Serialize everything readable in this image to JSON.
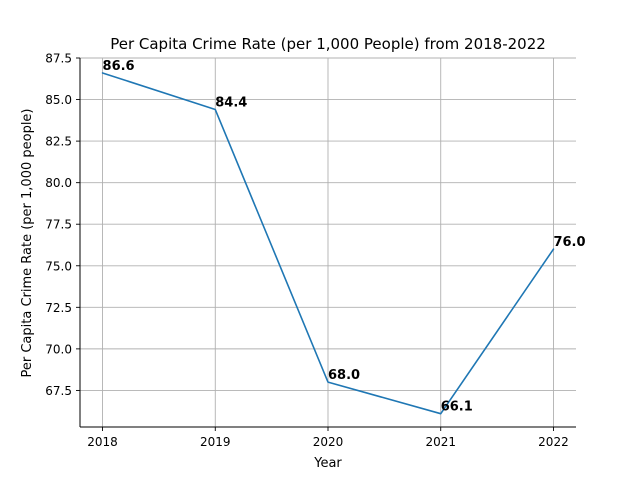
{
  "chart_data": {
    "type": "line",
    "title": "Per Capita Crime Rate (per 1,000 People) from 2018-2022",
    "xlabel": "Year",
    "ylabel": "Per Capita Crime Rate (per 1,000 people)",
    "x": [
      2018,
      2019,
      2020,
      2021,
      2022
    ],
    "x_tick_labels": [
      "2018",
      "2019",
      "2020",
      "2021",
      "2022"
    ],
    "series": [
      {
        "values": [
          86.6,
          84.4,
          68.0,
          66.1,
          76.0
        ],
        "data_labels": [
          "86.6",
          "84.4",
          "68.0",
          "66.1",
          "76.0"
        ],
        "color": "#1f77b4"
      }
    ],
    "ylim": [
      65.3,
      87.5
    ],
    "xlim": [
      2017.8,
      2022.2
    ],
    "y_ticks": [
      67.5,
      70.0,
      72.5,
      75.0,
      77.5,
      80.0,
      82.5,
      85.0,
      87.5
    ],
    "y_tick_labels": [
      "67.5",
      "70.0",
      "72.5",
      "75.0",
      "77.5",
      "80.0",
      "82.5",
      "85.0",
      "87.5"
    ],
    "grid": true,
    "grid_color": "#b0b0b0",
    "visible_spines": [
      "left",
      "bottom"
    ]
  }
}
